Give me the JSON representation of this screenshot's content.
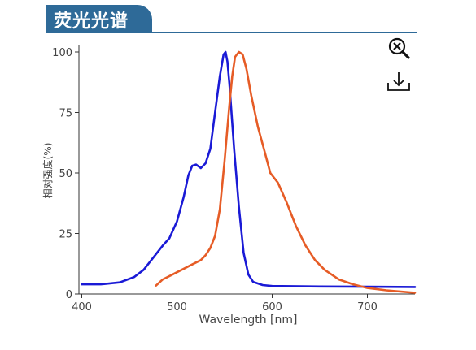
{
  "header": {
    "title": "荧光光谱"
  },
  "toolbar": {
    "zoom_icon": "zoom-reset-icon",
    "download_icon": "download-icon"
  },
  "chart_data": {
    "type": "line",
    "xlabel": "Wavelength [nm]",
    "ylabel": "相对强度(%)",
    "xlim": [
      397,
      750
    ],
    "ylim": [
      0,
      100
    ],
    "xticks": [
      400,
      500,
      600,
      700
    ],
    "yticks": [
      0,
      25,
      50,
      75,
      100
    ],
    "grid": false,
    "legend": "none",
    "series": [
      {
        "color": "#1a1ad6",
        "points": [
          [
            400,
            4
          ],
          [
            420,
            4
          ],
          [
            440,
            4.8
          ],
          [
            455,
            7
          ],
          [
            465,
            10
          ],
          [
            475,
            15
          ],
          [
            485,
            20
          ],
          [
            492,
            23
          ],
          [
            500,
            30
          ],
          [
            507,
            40
          ],
          [
            512,
            49
          ],
          [
            516,
            53
          ],
          [
            520,
            53.5
          ],
          [
            525,
            52
          ],
          [
            530,
            54
          ],
          [
            535,
            60
          ],
          [
            540,
            75
          ],
          [
            545,
            90
          ],
          [
            549,
            99
          ],
          [
            551,
            100
          ],
          [
            553,
            96
          ],
          [
            555,
            87
          ],
          [
            560,
            60
          ],
          [
            565,
            36
          ],
          [
            570,
            17
          ],
          [
            575,
            8
          ],
          [
            580,
            5
          ],
          [
            590,
            3.7
          ],
          [
            600,
            3.3
          ],
          [
            650,
            3.1
          ],
          [
            700,
            3
          ],
          [
            750,
            2.9
          ]
        ]
      },
      {
        "color": "#e65c26",
        "points": [
          [
            478,
            3.5
          ],
          [
            485,
            6
          ],
          [
            495,
            8
          ],
          [
            505,
            10
          ],
          [
            515,
            12
          ],
          [
            525,
            14
          ],
          [
            530,
            16
          ],
          [
            535,
            19
          ],
          [
            540,
            24
          ],
          [
            545,
            35
          ],
          [
            550,
            55
          ],
          [
            555,
            78
          ],
          [
            558,
            90
          ],
          [
            561,
            98
          ],
          [
            565,
            100
          ],
          [
            569,
            99
          ],
          [
            573,
            93
          ],
          [
            578,
            82
          ],
          [
            585,
            69
          ],
          [
            592,
            59
          ],
          [
            598,
            50
          ],
          [
            606,
            46
          ],
          [
            615,
            38
          ],
          [
            625,
            28
          ],
          [
            635,
            20
          ],
          [
            645,
            14
          ],
          [
            655,
            10
          ],
          [
            670,
            6
          ],
          [
            685,
            4
          ],
          [
            700,
            2.5
          ],
          [
            720,
            1.5
          ],
          [
            750,
            0.5
          ]
        ]
      }
    ]
  }
}
